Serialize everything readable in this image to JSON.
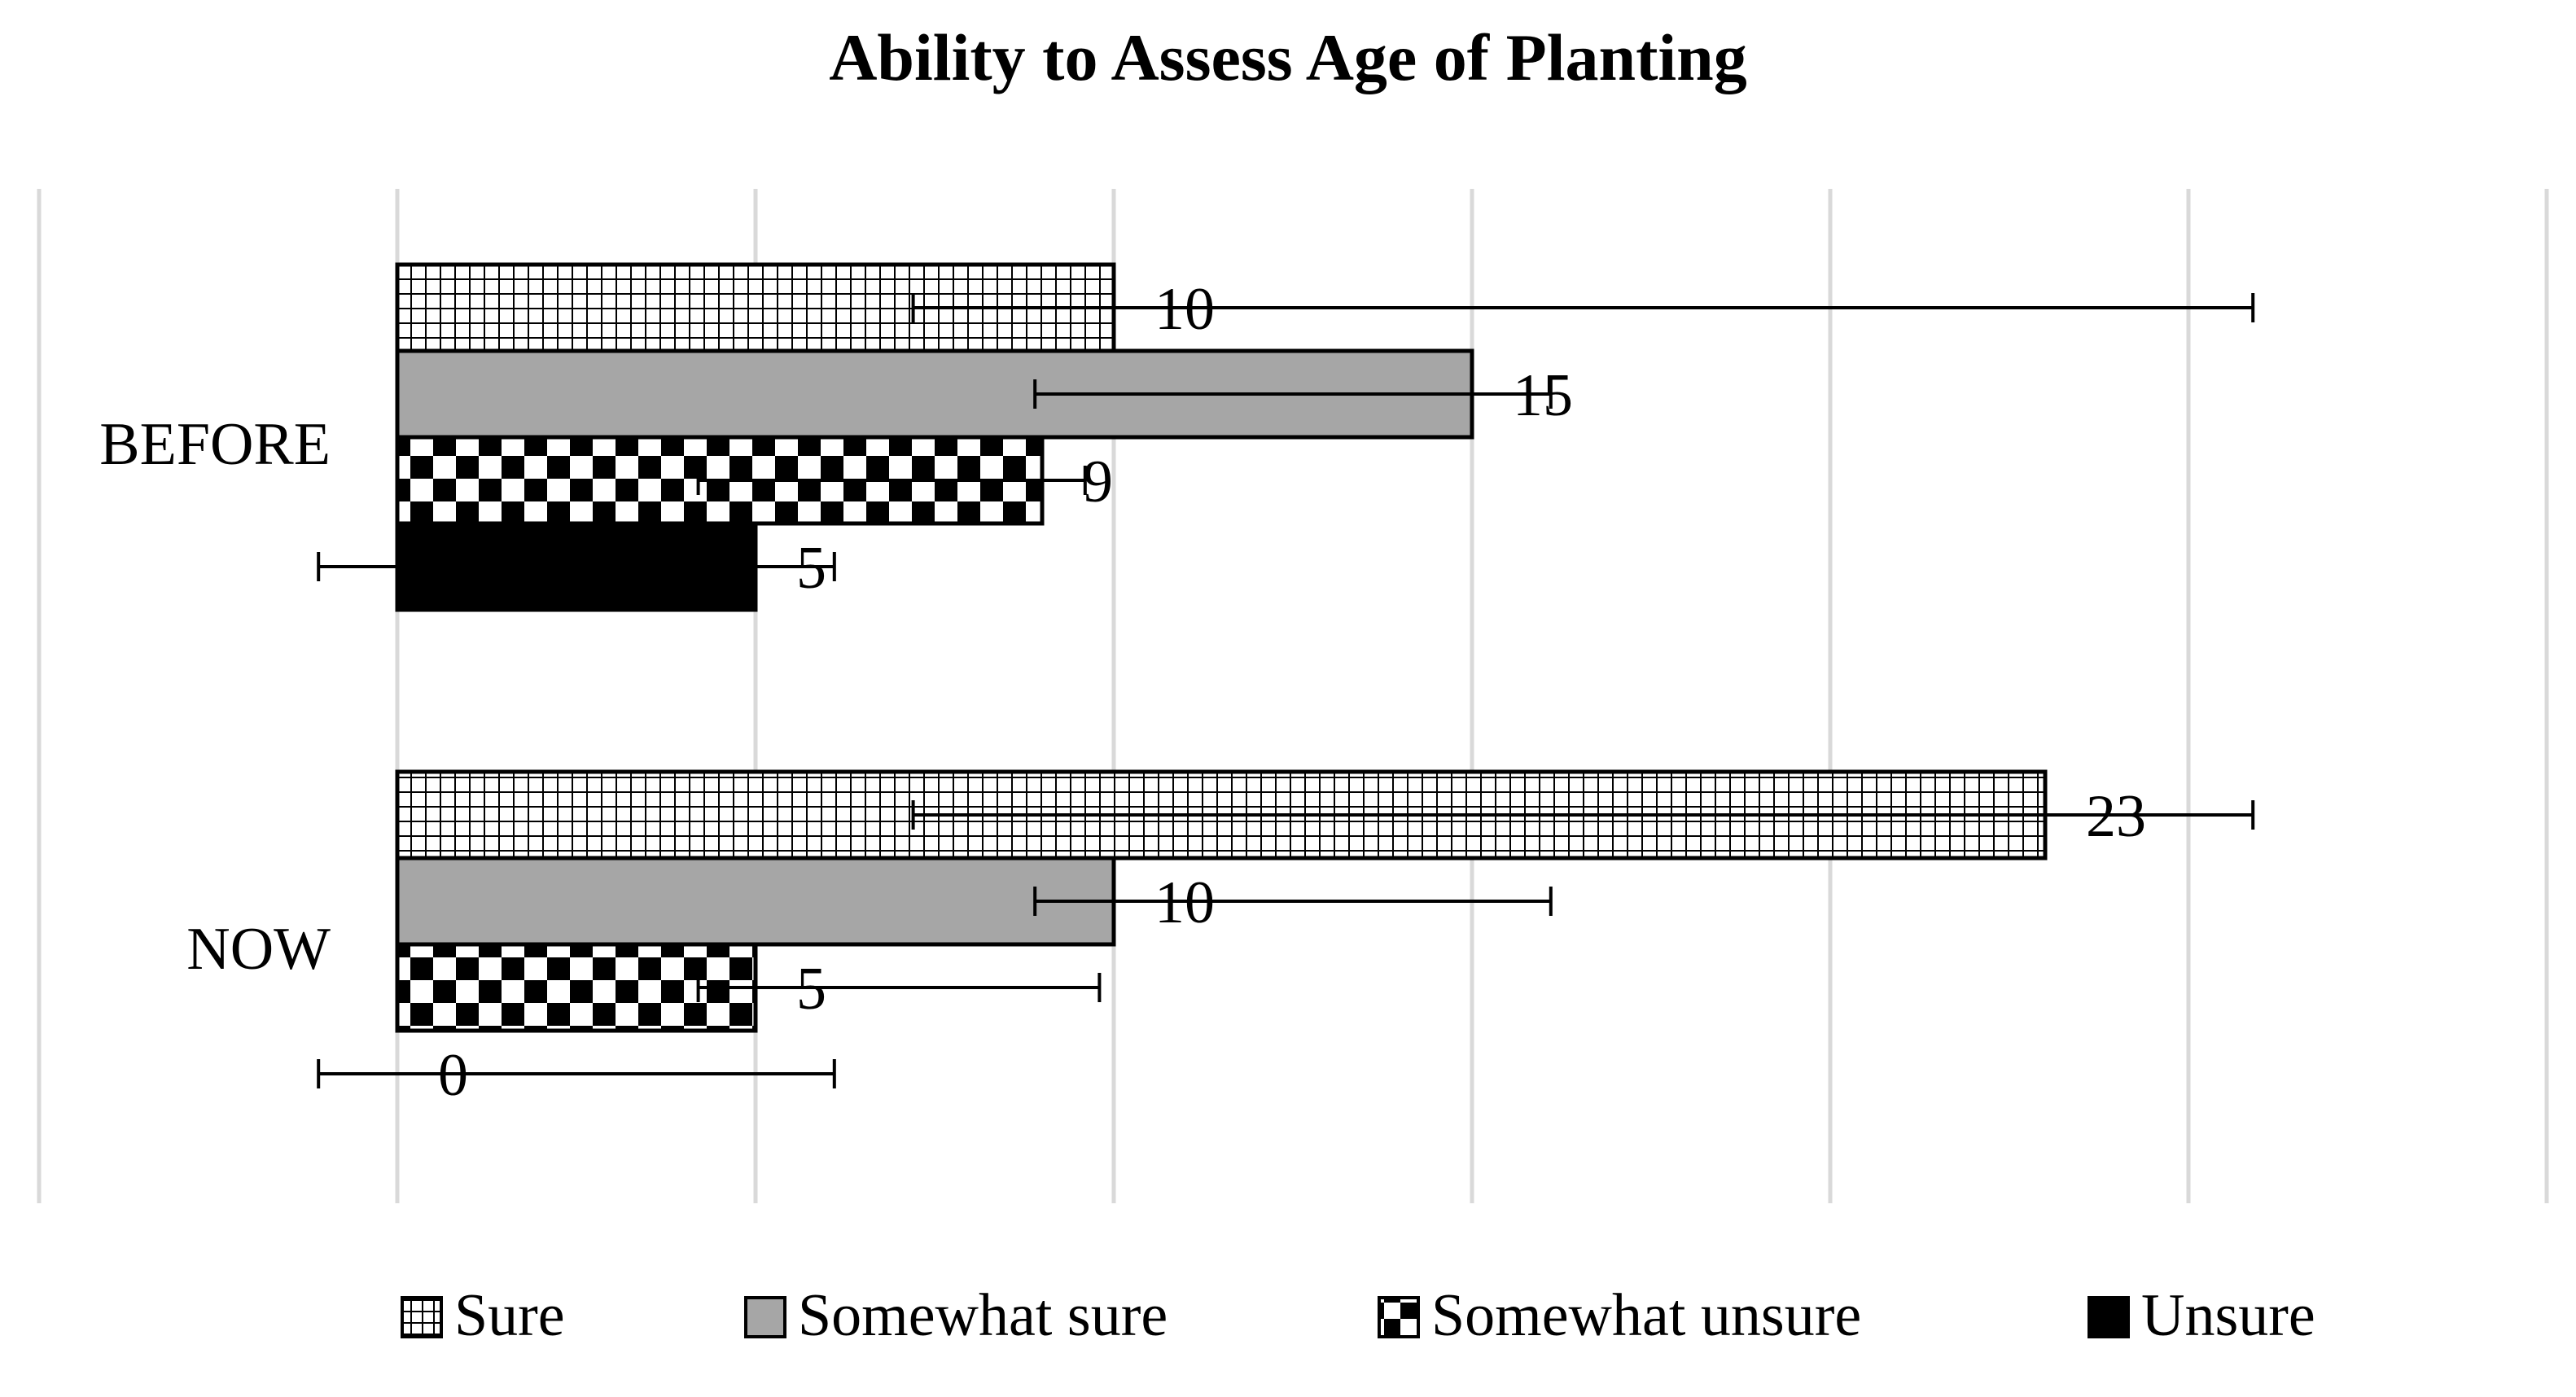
{
  "chart_data": {
    "type": "bar",
    "orientation": "horizontal",
    "title": "Ability to Assess Age of Planting",
    "categories": [
      "BEFORE",
      "NOW"
    ],
    "series": [
      {
        "name": "Sure",
        "values": [
          10,
          23
        ],
        "pattern": "grid",
        "error_low": [
          7.2,
          7.2
        ],
        "error_high": [
          25.9,
          25.9
        ]
      },
      {
        "name": "Somewhat sure",
        "values": [
          15,
          10
        ],
        "pattern": "solid-gray",
        "color": "#a6a6a6",
        "error_low": [
          8.9,
          8.9
        ],
        "error_high": [
          16.1,
          16.1
        ]
      },
      {
        "name": "Somewhat unsure",
        "values": [
          9,
          5
        ],
        "pattern": "checker",
        "error_low": [
          4.2,
          4.2
        ],
        "error_high": [
          9.6,
          9.8
        ]
      },
      {
        "name": "Unsure",
        "values": [
          5,
          0
        ],
        "pattern": "solid-black",
        "color": "#000000",
        "error_low": [
          -1.1,
          -1.1
        ],
        "error_high": [
          6.1,
          6.1
        ]
      }
    ],
    "xlim": [
      -5,
      30
    ],
    "grid": true,
    "legend_position": "bottom"
  }
}
